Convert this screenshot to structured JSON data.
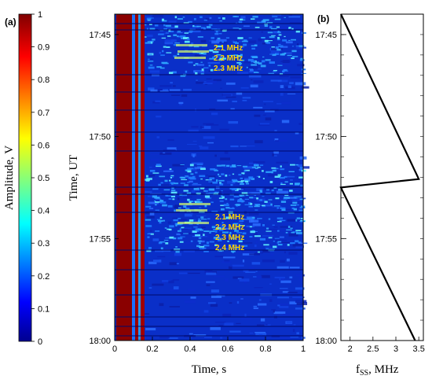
{
  "panel_labels": {
    "a": "(a)",
    "b": "(b)"
  },
  "colorbar": {
    "label": "Amplitude, V",
    "ticks": [
      "0",
      "0.1",
      "0.2",
      "0.3",
      "0.4",
      "0.5",
      "0.6",
      "0.7",
      "0.8",
      "0.9",
      "1"
    ]
  },
  "spectrogram": {
    "xlabel": "Time, s",
    "ylabel": "Time, UT",
    "xticks": [
      "0",
      "0.2",
      "0.4",
      "0.6",
      "0.8",
      "1"
    ],
    "yticks": [
      "17:45",
      "17:50",
      "17:55",
      "18:00"
    ],
    "annotations_top": [
      "2.1 MHz",
      "2.2 MHz",
      "2.3 MHz"
    ],
    "annotations_bottom": [
      "2.1 MHz",
      "2.2 MHz",
      "2.3 MHz",
      "2.4 MHz"
    ]
  },
  "sweep": {
    "xlabel_main": "f",
    "xlabel_sub": "SS",
    "xlabel_unit": ", MHz",
    "xticks": [
      "2",
      "2.5",
      "3",
      "3.5"
    ],
    "yticks": [
      "17:45",
      "17:50",
      "17:55",
      "18:00"
    ]
  },
  "chart_data": {
    "type": "line",
    "title": "",
    "xlabel": "f_SS, MHz",
    "ylabel": "Time, UT",
    "xlim": [
      1.8,
      3.6
    ],
    "ylim": [
      "18:00",
      "17:44"
    ],
    "series": [
      {
        "x": [
          1.8,
          3.5,
          1.8,
          3.42
        ],
        "y": [
          "17:44",
          "17:52:05",
          "17:52:30",
          "18:00"
        ]
      }
    ]
  }
}
